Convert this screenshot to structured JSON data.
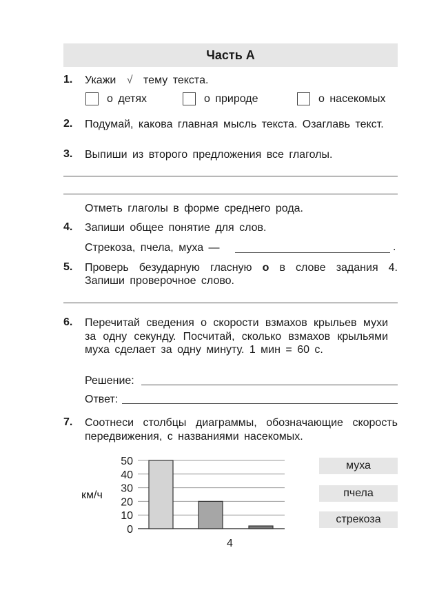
{
  "header": {
    "title": "Часть А"
  },
  "q1": {
    "num": "1.",
    "text_before": "Укажи",
    "check_glyph": "√",
    "text_after": "тему текста.",
    "options": [
      "о детях",
      "о природе",
      "о насекомых"
    ]
  },
  "q2": {
    "num": "2.",
    "text": "Подумай, какова главная мысль текста. Озаглавь текст."
  },
  "q3": {
    "num": "3.",
    "text": "Выпиши из второго предложения все глаголы.",
    "note": "Отметь глаголы в форме среднего рода."
  },
  "q4": {
    "num": "4.",
    "text": "Запиши общее понятие для слов.",
    "words": "Стрекоза, пчела, муха —",
    "end": "."
  },
  "q5": {
    "num": "5.",
    "text_before": "Проверь безударную гласную",
    "letter": "о",
    "text_after": "в слове задания 4. Запиши проверочное слово."
  },
  "q6": {
    "num": "6.",
    "text": "Перечитай сведения о скорости взмахов крыльев мухи за одну секунду. Посчитай, сколько взмахов крыльями муха сделает за одну минуту. 1 мин = 60 с.",
    "solution_label": "Решение:",
    "answer_label": "Ответ:"
  },
  "q7": {
    "num": "7.",
    "text": "Соотнеси столбцы диаграммы, обозначающие скорость передвижения, с названиями насекомых.",
    "labels": [
      "муха",
      "пчела",
      "стрекоза"
    ]
  },
  "chart_data": {
    "type": "bar",
    "ylabel": "км/ч",
    "ylim": [
      0,
      50
    ],
    "yticks": [
      "0",
      "10",
      "20",
      "30",
      "40",
      "50"
    ],
    "grid": true,
    "values": [
      50,
      20,
      2
    ],
    "colors": [
      "#d4d4d4",
      "#a6a6a6",
      "#7a7a7a"
    ]
  },
  "footer": {
    "page_number": "4"
  }
}
